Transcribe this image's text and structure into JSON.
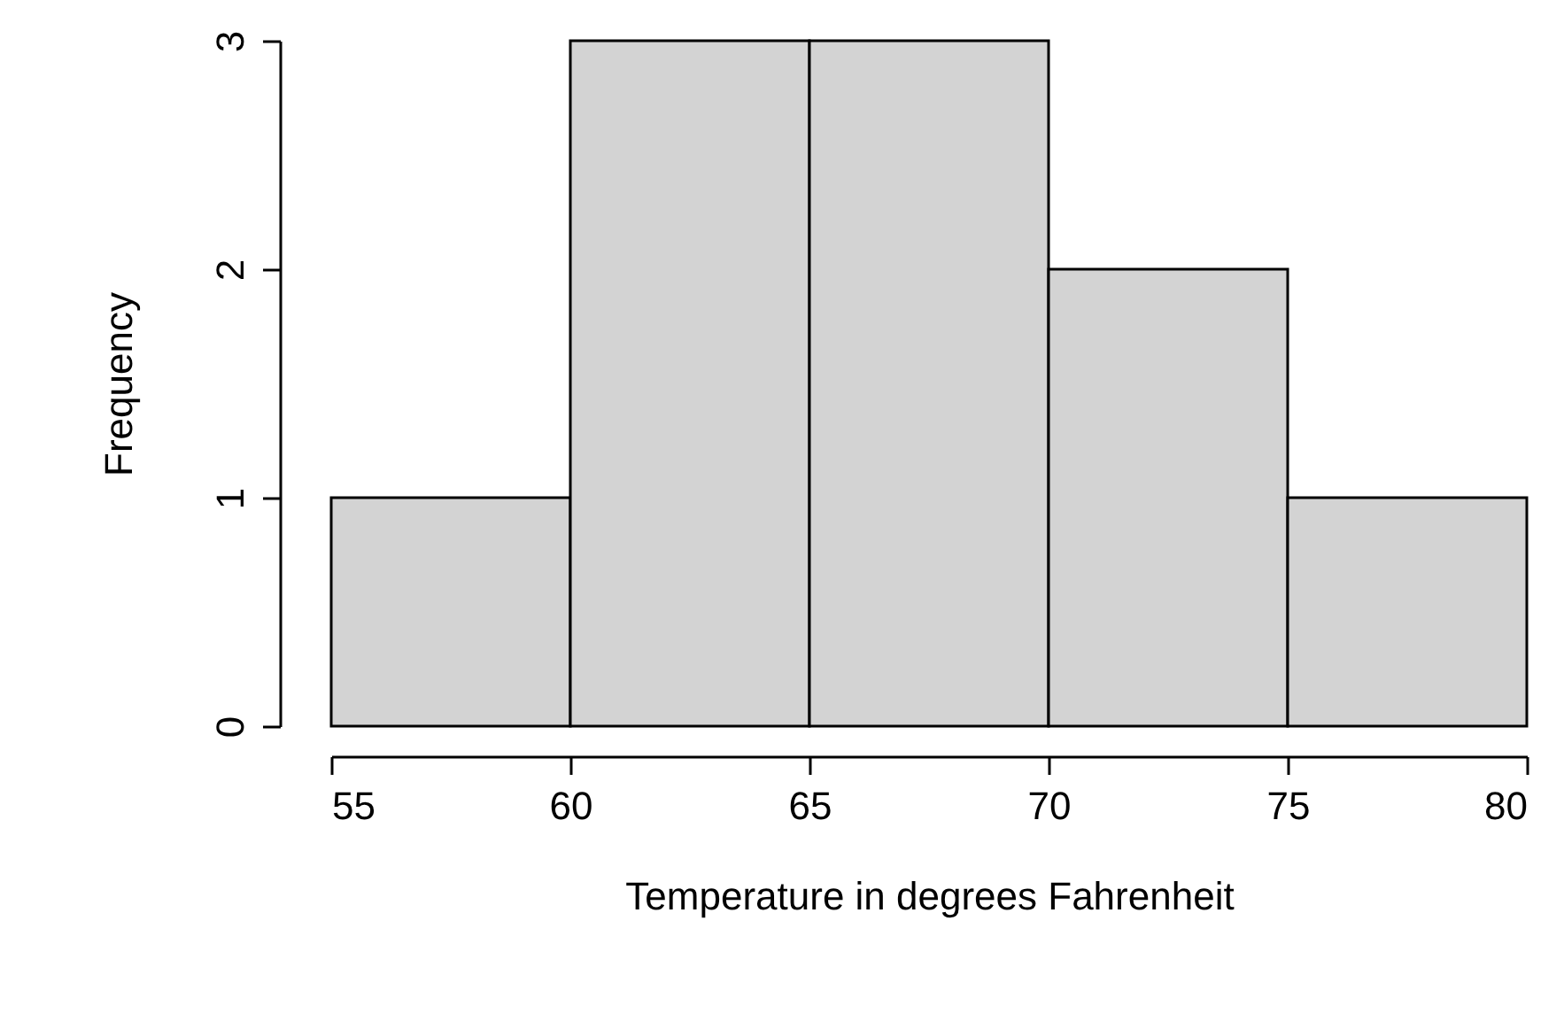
{
  "chart_data": {
    "type": "histogram",
    "xlabel": "Temperature in degrees Fahrenheit",
    "ylabel": "Frequency",
    "bins": [
      55,
      60,
      65,
      70,
      75,
      80
    ],
    "values": [
      1,
      3,
      3,
      2,
      1
    ],
    "color": "#d3d3d3",
    "xlim": [
      55,
      80
    ],
    "xticks": [
      55,
      60,
      65,
      70,
      75,
      80
    ],
    "ylim": [
      0,
      3
    ],
    "yticks": [
      0,
      1,
      2,
      3
    ],
    "grid": false
  }
}
